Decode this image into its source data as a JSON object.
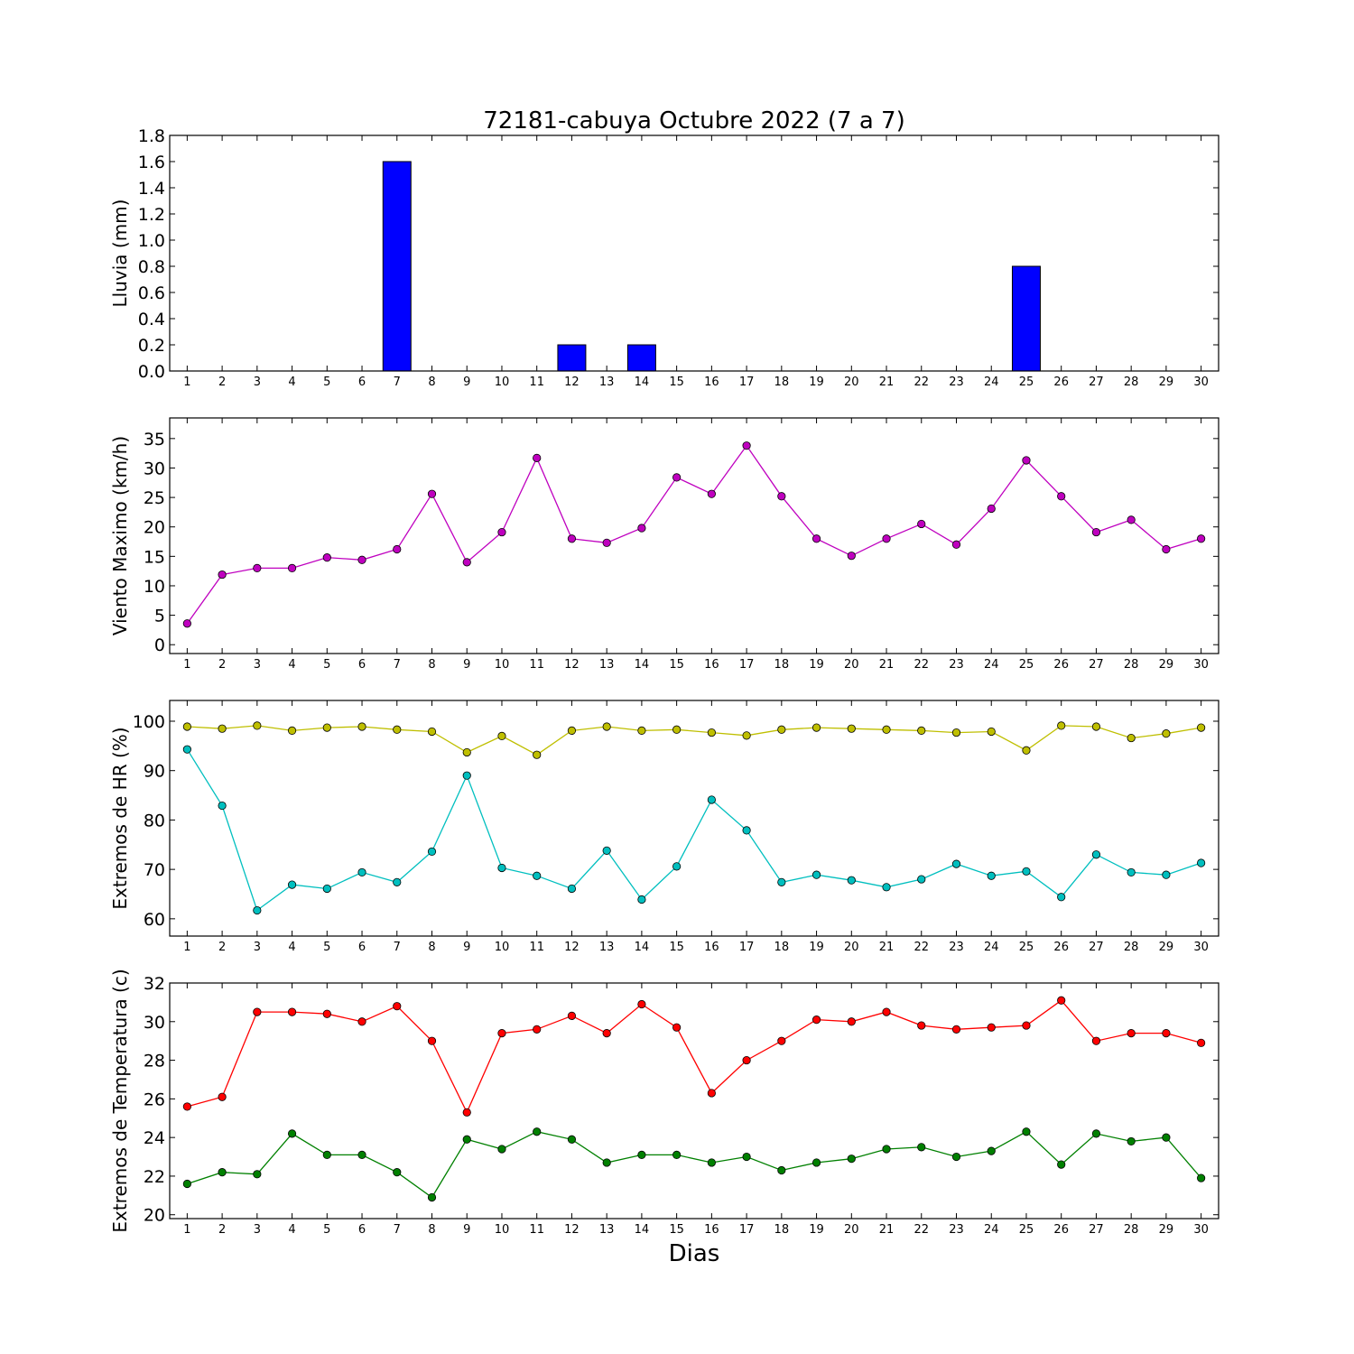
{
  "chart_data": {
    "title": "72181-cabuya Octubre 2022  (7 a 7)",
    "xlabel": "Dias",
    "days": [
      1,
      2,
      3,
      4,
      5,
      6,
      7,
      8,
      9,
      10,
      11,
      12,
      13,
      14,
      15,
      16,
      17,
      18,
      19,
      20,
      21,
      22,
      23,
      24,
      25,
      26,
      27,
      28,
      29,
      30
    ],
    "panels": [
      {
        "type": "bar",
        "ylabel": "Lluvia (mm)",
        "ylim": [
          0,
          1.8
        ],
        "yticks": [
          "0.0",
          "0.2",
          "0.4",
          "0.6",
          "0.8",
          "1.0",
          "1.2",
          "1.4",
          "1.6",
          "1.8"
        ],
        "series": [
          {
            "color": "#0000ff",
            "values": [
              0,
              0,
              0,
              0,
              0,
              0,
              1.6,
              0,
              0,
              0,
              0,
              0.2,
              0,
              0.2,
              0,
              0,
              0,
              0,
              0,
              0,
              0,
              0,
              0,
              0,
              0.8,
              0,
              0,
              0,
              0,
              0
            ]
          }
        ]
      },
      {
        "type": "line",
        "ylabel": "Viento Maximo (km/h)",
        "ylim": [
          -1.5,
          38.5
        ],
        "yticks": [
          "0",
          "5",
          "10",
          "15",
          "20",
          "25",
          "30",
          "35"
        ],
        "series": [
          {
            "color": "#bf00bf",
            "values": [
              3.6,
              11.9,
              13,
              13,
              14.8,
              14.4,
              16.2,
              25.6,
              14,
              19.1,
              31.7,
              18,
              17.3,
              19.8,
              28.4,
              25.6,
              33.8,
              25.2,
              18,
              15.1,
              18,
              20.5,
              17,
              23.1,
              31.3,
              25.2,
              19.1,
              21.2,
              16.2,
              18
            ]
          }
        ]
      },
      {
        "type": "line",
        "ylabel": "Extremos de HR (%)",
        "ylim": [
          56.5,
          104.2
        ],
        "yticks": [
          "60",
          "70",
          "80",
          "90",
          "100"
        ],
        "series": [
          {
            "color": "#bfbf00",
            "values": [
              98.9,
              98.5,
              99.1,
              98.1,
              98.7,
              98.9,
              98.3,
              97.9,
              93.7,
              97,
              93.2,
              98.1,
              98.9,
              98.1,
              98.3,
              97.7,
              97.1,
              98.3,
              98.7,
              98.5,
              98.3,
              98.1,
              97.7,
              97.9,
              94.1,
              99.1,
              98.9,
              96.6,
              97.5,
              98.7
            ]
          },
          {
            "color": "#00bfbf",
            "values": [
              94.3,
              82.9,
              61.7,
              66.9,
              66.1,
              69.4,
              67.4,
              73.6,
              89,
              70.3,
              68.7,
              66.1,
              73.8,
              63.9,
              70.6,
              84.1,
              77.9,
              67.4,
              68.9,
              67.8,
              66.4,
              68,
              71.1,
              68.7,
              69.6,
              64.4,
              73,
              69.4,
              68.9,
              71.3
            ]
          }
        ]
      },
      {
        "type": "line",
        "ylabel": "Extremos de Temperatura (c)",
        "ylim": [
          19.8,
          32
        ],
        "yticks": [
          "20",
          "22",
          "24",
          "26",
          "28",
          "30",
          "32"
        ],
        "series": [
          {
            "color": "#ff0000",
            "values": [
              25.6,
              26.1,
              30.5,
              30.5,
              30.4,
              30,
              30.8,
              29,
              25.3,
              29.4,
              29.6,
              30.3,
              29.4,
              30.9,
              29.7,
              26.3,
              28,
              29,
              30.1,
              30,
              30.5,
              29.8,
              29.6,
              29.7,
              29.8,
              31.1,
              29,
              29.4,
              29.4,
              28.9
            ]
          },
          {
            "color": "#008000",
            "values": [
              21.6,
              22.2,
              22.1,
              24.2,
              23.1,
              23.1,
              22.2,
              20.9,
              23.9,
              23.4,
              24.3,
              23.9,
              22.7,
              23.1,
              23.1,
              22.7,
              23,
              22.3,
              22.7,
              22.9,
              23.4,
              23.5,
              23,
              23.3,
              24.3,
              22.6,
              24.2,
              23.8,
              24,
              21.9
            ]
          }
        ]
      }
    ]
  }
}
